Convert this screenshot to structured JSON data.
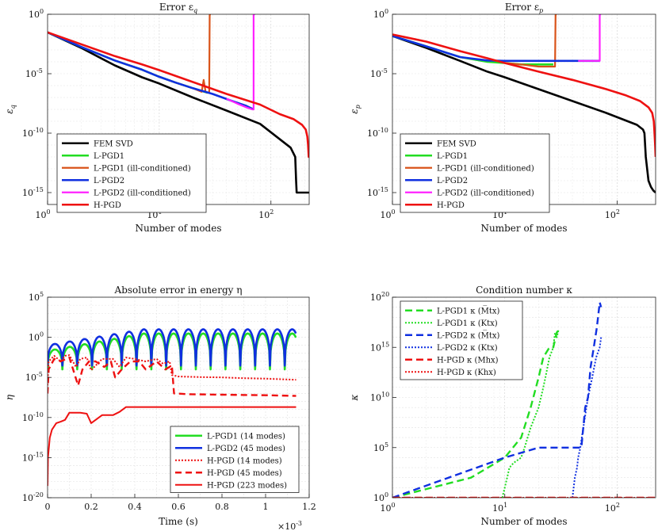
{
  "chart_data": [
    {
      "type": "line",
      "title": "Error ε",
      "title_sub": "q",
      "xlabel": "Number of modes",
      "ylabel_sym": "ε",
      "ylabel_sub": "q",
      "xscale": "log",
      "yscale": "log",
      "xlim": [
        1,
        220
      ],
      "ylim": [
        1e-16,
        1
      ],
      "xticks": [
        {
          "v": 1,
          "b": "10",
          "e": "0"
        },
        {
          "v": 10,
          "b": "10",
          "e": "1"
        },
        {
          "v": 100,
          "b": "10",
          "e": "2"
        }
      ],
      "yticks": [
        {
          "v": 1,
          "b": "10",
          "e": "0"
        },
        {
          "v": 1e-05,
          "b": "10",
          "e": "-5"
        },
        {
          "v": 1e-10,
          "b": "10",
          "e": "-10"
        },
        {
          "v": 1e-15,
          "b": "10",
          "e": "-15"
        }
      ],
      "legend_position": "bottom-left",
      "series": [
        {
          "name": "FEM SVD",
          "color": "#000000",
          "width": 2.6,
          "dash": "",
          "x": [
            1,
            2,
            4,
            7,
            10,
            20,
            40,
            80,
            150,
            165,
            168,
            170,
            220
          ],
          "y": [
            0.03,
            0.0015,
            5e-05,
            5e-06,
            1.5e-06,
            1e-07,
            8e-09,
            6e-10,
            6e-12,
            1e-12,
            1e-14,
            1e-15,
            1e-15
          ]
        },
        {
          "name": "L-PGD1",
          "color": "#22dd22",
          "width": 2.6,
          "dash": "",
          "x": [
            1,
            2,
            4,
            7,
            10,
            14,
            20,
            27
          ],
          "y": [
            0.03,
            0.0018,
            0.00013,
            2.2e-05,
            5.5e-06,
            1.8e-06,
            6e-07,
            2.5e-07
          ]
        },
        {
          "name": "L-PGD1 (ill-conditioned)",
          "color": "#d95319",
          "width": 2.2,
          "dash": "",
          "x": [
            10,
            14,
            20,
            24,
            25,
            26,
            27,
            28,
            28.3,
            29
          ],
          "y": [
            5.5e-06,
            1.8e-06,
            6e-07,
            3e-07,
            3e-06,
            3e-07,
            2.5e-07,
            3e-07,
            1,
            1
          ]
        },
        {
          "name": "L-PGD2",
          "color": "#1030e0",
          "width": 2.6,
          "dash": "",
          "x": [
            1,
            2,
            4,
            7,
            10,
            14,
            20,
            30,
            45,
            60,
            70
          ],
          "y": [
            0.03,
            0.0018,
            0.00013,
            2.2e-05,
            5.5e-06,
            1.8e-06,
            6e-07,
            2e-07,
            5e-08,
            2e-08,
            1e-08
          ]
        },
        {
          "name": "L-PGD2 (ill-conditioned)",
          "color": "#ff22ff",
          "width": 2.2,
          "dash": "",
          "x": [
            40,
            50,
            60,
            68,
            70,
            70,
            72
          ],
          "y": [
            8e-08,
            3e-08,
            1.5e-08,
            1e-08,
            1e-08,
            1,
            1
          ]
        },
        {
          "name": "H-PGD",
          "color": "#ee1111",
          "width": 2.6,
          "dash": "",
          "x": [
            1,
            2,
            4,
            7,
            10,
            20,
            40,
            80,
            120,
            160,
            190,
            205,
            212,
            215,
            218,
            220
          ],
          "y": [
            0.03,
            0.003,
            0.0003,
            6e-05,
            2e-05,
            2e-06,
            2e-07,
            2.5e-08,
            4e-09,
            1.5e-09,
            5e-10,
            2e-10,
            5e-11,
            1e-11,
            1e-12,
            4e-12
          ]
        }
      ]
    },
    {
      "type": "line",
      "title": "Error ε",
      "title_sub": "p",
      "xlabel": "Number of modes",
      "ylabel_sym": "ε",
      "ylabel_sub": "p",
      "xscale": "log",
      "yscale": "log",
      "xlim": [
        1,
        220
      ],
      "ylim": [
        1e-16,
        1
      ],
      "xticks": [
        {
          "v": 1,
          "b": "10",
          "e": "0"
        },
        {
          "v": 10,
          "b": "10",
          "e": "1"
        },
        {
          "v": 100,
          "b": "10",
          "e": "2"
        }
      ],
      "yticks": [
        {
          "v": 1,
          "b": "10",
          "e": "0"
        },
        {
          "v": 1e-05,
          "b": "10",
          "e": "-5"
        },
        {
          "v": 1e-10,
          "b": "10",
          "e": "-10"
        },
        {
          "v": 1e-15,
          "b": "10",
          "e": "-15"
        }
      ],
      "legend_position": "bottom-left",
      "series": [
        {
          "name": "FEM SVD",
          "color": "#000000",
          "width": 2.6,
          "dash": "",
          "x": [
            1,
            2,
            4,
            7,
            10,
            20,
            40,
            80,
            150,
            170,
            175,
            180,
            190,
            200,
            210,
            220
          ],
          "y": [
            0.015,
            0.0015,
            0.00012,
            1.5e-05,
            5e-06,
            5e-07,
            5e-08,
            5e-09,
            5e-10,
            2e-10,
            1e-10,
            1e-12,
            1e-14,
            3e-15,
            1.5e-15,
            1e-15
          ]
        },
        {
          "name": "L-PGD1",
          "color": "#22dd22",
          "width": 2.6,
          "dash": "",
          "x": [
            1,
            2,
            4,
            7,
            10,
            14,
            20,
            27
          ],
          "y": [
            0.015,
            0.002,
            0.00025,
            0.0001,
            8e-05,
            6e-05,
            6e-05,
            6e-05
          ]
        },
        {
          "name": "L-PGD1 (ill-conditioned)",
          "color": "#d95319",
          "width": 2.2,
          "dash": "",
          "x": [
            10,
            14,
            20,
            27,
            28,
            28.3,
            29
          ],
          "y": [
            8e-05,
            6e-05,
            4e-05,
            4e-05,
            4e-05,
            1,
            1
          ]
        },
        {
          "name": "L-PGD2",
          "color": "#1030e0",
          "width": 2.6,
          "dash": "",
          "x": [
            1,
            2,
            4,
            7,
            10,
            14,
            20,
            30,
            50,
            70
          ],
          "y": [
            0.015,
            0.002,
            0.00025,
            0.00013,
            0.00012,
            0.00012,
            0.00012,
            0.00012,
            0.00012,
            0.00012
          ]
        },
        {
          "name": "L-PGD2 (ill-conditioned)",
          "color": "#ff22ff",
          "width": 2.2,
          "dash": "",
          "x": [
            45,
            60,
            70,
            70,
            72
          ],
          "y": [
            0.00012,
            0.00012,
            0.00012,
            1,
            1
          ]
        },
        {
          "name": "H-PGD",
          "color": "#ee1111",
          "width": 2.6,
          "dash": "",
          "x": [
            1,
            2,
            4,
            7,
            10,
            20,
            40,
            80,
            120,
            160,
            190,
            205,
            212,
            215,
            218,
            220
          ],
          "y": [
            0.02,
            0.005,
            0.0008,
            0.0002,
            8e-05,
            1.5e-05,
            3e-06,
            5e-07,
            1.5e-07,
            5e-08,
            1.5e-08,
            5e-09,
            1e-09,
            1e-10,
            1e-11,
            1e-12
          ]
        }
      ]
    },
    {
      "type": "line",
      "title": "Absolute error in energy η",
      "xlabel": "Time (s)",
      "ylabel_sym": "η",
      "xscale": "linear",
      "yscale": "log",
      "xlim": [
        0,
        1.2
      ],
      "ylim": [
        1e-20,
        100000.0
      ],
      "x_multiplier": "×10",
      "x_multiplier_exp": "-3",
      "xticks": [
        {
          "v": 0,
          "t": "0"
        },
        {
          "v": 0.2,
          "t": "0.2"
        },
        {
          "v": 0.4,
          "t": "0.4"
        },
        {
          "v": 0.6,
          "t": "0.6"
        },
        {
          "v": 0.8,
          "t": "0.8"
        },
        {
          "v": 1,
          "t": "1"
        },
        {
          "v": 1.2,
          "t": "1.2"
        }
      ],
      "yticks": [
        {
          "v": 100000.0,
          "b": "10",
          "e": "5"
        },
        {
          "v": 1,
          "b": "10",
          "e": "0"
        },
        {
          "v": 1e-05,
          "b": "10",
          "e": "-5"
        },
        {
          "v": 1e-10,
          "b": "10",
          "e": "-10"
        },
        {
          "v": 1e-15,
          "b": "10",
          "e": "-15"
        },
        {
          "v": 1e-20,
          "b": "10",
          "e": "-20"
        }
      ],
      "legend_position": "bottom-right",
      "series": [
        {
          "name": "L-PGD1 (14 modes)",
          "color": "#22dd22",
          "width": 2.6,
          "dash": "",
          "generator": "periodic",
          "period": 0.068,
          "xmax": 1.14,
          "top": [
            0.03,
            3
          ],
          "bottom": 0.0001
        },
        {
          "name": "L-PGD2 (45 modes)",
          "color": "#1030e0",
          "width": 2.6,
          "dash": "",
          "generator": "periodic",
          "period": 0.068,
          "xmax": 1.14,
          "top": [
            0.15,
            10
          ],
          "bottom": 0.0003
        },
        {
          "name": "H-PGD (14 modes)",
          "color": "#ee1111",
          "width": 2,
          "dash": "2,2",
          "x": [
            0,
            0.005,
            0.03,
            0.06,
            0.08,
            0.1,
            0.13,
            0.15,
            0.18,
            0.2,
            0.25,
            0.3,
            0.33,
            0.36,
            0.4,
            0.45,
            0.5,
            0.53,
            0.56,
            0.57,
            0.6,
            0.7,
            0.8,
            0.9,
            1.0,
            1.1,
            1.14
          ],
          "y": [
            1e-06,
            0.001,
            0.005,
            0.001,
            0.005,
            0.006,
            0.0002,
            0.002,
            0.003,
            8e-05,
            0.002,
            0.002,
            0.0002,
            0.003,
            0.002,
            0.001,
            0.002,
            0.0005,
            0.001,
            2e-05,
            1.3e-05,
            1.1e-05,
            1e-05,
            8e-06,
            7e-06,
            5.5e-06,
            5e-06
          ]
        },
        {
          "name": "H-PGD (45 modes)",
          "color": "#ee1111",
          "width": 2.4,
          "dash": "8,5",
          "x": [
            0,
            0.005,
            0.03,
            0.06,
            0.1,
            0.14,
            0.16,
            0.19,
            0.22,
            0.26,
            0.29,
            0.31,
            0.34,
            0.38,
            0.42,
            0.45,
            0.5,
            0.54,
            0.57,
            0.58,
            0.65,
            0.8,
            1.0,
            1.14
          ],
          "y": [
            1e-07,
            0.0001,
            0.002,
            0.001,
            0.003,
            1e-06,
            0.0001,
            0.001,
            0.001,
            0.0002,
            0.001,
            1e-05,
            0.0001,
            0.001,
            0.001,
            0.0001,
            0.001,
            0.0001,
            0.0003,
            1e-07,
            8e-08,
            7e-08,
            6e-08,
            5e-08
          ]
        },
        {
          "name": "H-PGD (223 modes)",
          "color": "#ee1111",
          "width": 2,
          "dash": "",
          "x": [
            0,
            0.002,
            0.01,
            0.02,
            0.04,
            0.06,
            0.08,
            0.1,
            0.15,
            0.18,
            0.2,
            0.25,
            0.3,
            0.33,
            0.36,
            0.4,
            0.5,
            0.6,
            0.7,
            0.8,
            1.0,
            1.14
          ],
          "y": [
            3e-19,
            1e-15,
            3e-13,
            3e-12,
            2e-11,
            3e-11,
            5e-11,
            4e-10,
            4e-10,
            3e-10,
            2e-11,
            2e-10,
            2e-10,
            5e-10,
            2e-09,
            2e-09,
            2e-09,
            2e-09,
            2e-09,
            2e-09,
            2e-09,
            2e-09
          ]
        }
      ]
    },
    {
      "type": "line",
      "title": "Condition number κ",
      "xlabel": "Number of modes",
      "ylabel_sym": "κ",
      "xscale": "log",
      "yscale": "log",
      "xlim": [
        1,
        220
      ],
      "ylim": [
        1,
        1e+20
      ],
      "xticks": [
        {
          "v": 1,
          "b": "10",
          "e": "0"
        },
        {
          "v": 10,
          "b": "10",
          "e": "1"
        },
        {
          "v": 100,
          "b": "10",
          "e": "2"
        }
      ],
      "yticks": [
        {
          "v": 1e+20,
          "b": "10",
          "e": "20"
        },
        {
          "v": 1000000000000000.0,
          "b": "10",
          "e": "15"
        },
        {
          "v": 10000000000.0,
          "b": "10",
          "e": "10"
        },
        {
          "v": 100000.0,
          "b": "10",
          "e": "5"
        },
        {
          "v": 1,
          "b": "10",
          "e": "0"
        }
      ],
      "legend_position": "top-left",
      "series": [
        {
          "name": "L-PGD1 κ (M̅tx)",
          "color": "#22dd22",
          "width": 2.4,
          "dash": "9,5",
          "x": [
            1,
            5,
            10,
            14,
            17,
            20,
            22,
            25,
            27,
            29,
            30
          ],
          "y": [
            1,
            100.0,
            10000.0,
            1000000.0,
            1000000000.0,
            1000000000000.0,
            100000000000000.0,
            1000000000000000.0,
            1000000000000000.0,
            3e+16,
            5e+16
          ]
        },
        {
          "name": "L-PGD1 κ (Ktx)",
          "color": "#22dd22",
          "width": 2,
          "dash": "2,2",
          "x": [
            9.5,
            10,
            10.5,
            11,
            12,
            14,
            15,
            17,
            20,
            22,
            23,
            25,
            27,
            28,
            29,
            30
          ],
          "y": [
            1,
            10,
            100,
            1000.0,
            3000.0,
            10000.0,
            100000.0,
            10000000.0,
            1000000000.0,
            100000000000.0,
            1000000000000.0,
            100000000000000.0,
            1000000000000000.0,
            3e+16,
            1e+16,
            5e+16
          ]
        },
        {
          "name": "L-PGD2 κ (M̅tx)",
          "color": "#1030e0",
          "width": 2.4,
          "dash": "9,5",
          "x": [
            1,
            10,
            20,
            40,
            48,
            52,
            55,
            58,
            62,
            66,
            70,
            72
          ],
          "y": [
            1,
            10000.0,
            100000.0,
            100000.0,
            100000.0,
            1000000000.0,
            10000000000.0,
            10000000000000.0,
            1000000000000000.0,
            1e+17,
            3e+19,
            1e+19
          ]
        },
        {
          "name": "L-PGD2 κ (Ktx)",
          "color": "#1030e0",
          "width": 2,
          "dash": "2,2",
          "x": [
            40,
            41,
            42,
            44,
            45,
            47,
            50,
            55,
            60,
            65,
            70,
            72
          ],
          "y": [
            1,
            10,
            100,
            1000.0,
            10000.0,
            100000.0,
            10000000.0,
            10000000000.0,
            1000000000000.0,
            100000000000000.0,
            1000000000000000.0,
            1e+16
          ]
        },
        {
          "name": "H-PGD κ (Mhx)",
          "color": "#ee1111",
          "width": 2.4,
          "dash": "9,5",
          "x": [
            1,
            220
          ],
          "y": [
            1,
            1
          ]
        },
        {
          "name": "H-PGD κ (Khx)",
          "color": "#ee1111",
          "width": 2,
          "dash": "2,2",
          "x": [
            1,
            220
          ],
          "y": [
            1,
            1
          ]
        }
      ]
    }
  ]
}
